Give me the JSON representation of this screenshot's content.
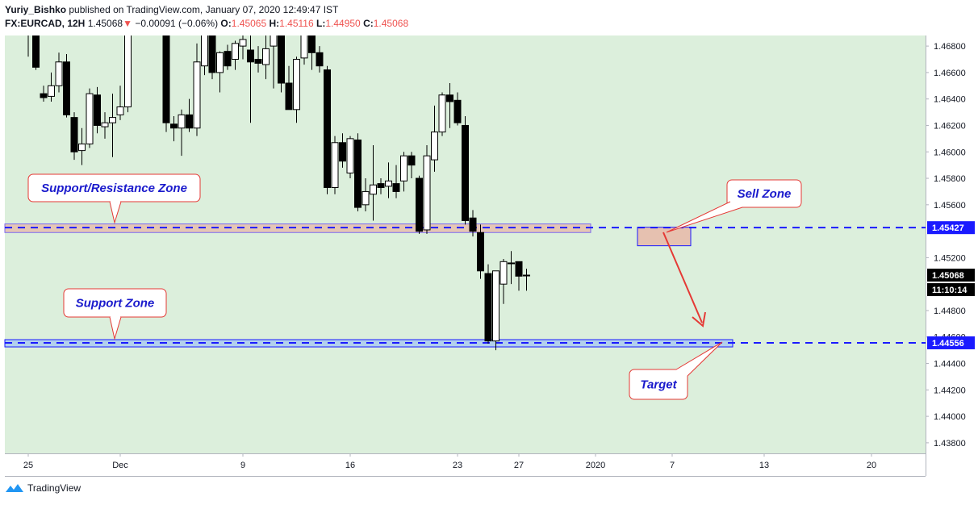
{
  "header": {
    "author": "Yuriy_Bishko",
    "published": "published on TradingView.com, January 07, 2020 12:49:47 IST",
    "symbol": "FX:EURCAD, 12H",
    "last": "1.45068",
    "arrow": "▼",
    "change": "−0.00091 (−0.06%)",
    "o_label": "O:",
    "o_value": "1.45065",
    "h_label": "H:",
    "h_value": "1.45116",
    "l_label": "L:",
    "l_value": "1.44950",
    "c_label": "C:",
    "c_value": "1.45068"
  },
  "footer": {
    "brand": "TradingView"
  },
  "colors": {
    "background": "#dcefdc",
    "up_body": "#ffffff",
    "down_body": "#000000",
    "dashed_line": "#1a1aff",
    "resistance_zone": "#e8b8a8",
    "support_zone": "#a8c8f0",
    "sell_zone": "#e8b8a8",
    "callout_text": "#1a1acc",
    "callout_border": "#e53935",
    "arrow": "#e53935"
  },
  "chart_data": {
    "type": "candlestick",
    "ylim": [
      1.4372,
      1.4688
    ],
    "y_ticks": [
      1.468,
      1.466,
      1.464,
      1.462,
      1.46,
      1.458,
      1.456,
      1.452,
      1.448,
      1.446,
      1.444,
      1.442,
      1.44,
      1.438
    ],
    "y_tick_labels": [
      "1.46800",
      "1.46600",
      "1.46400",
      "1.46200",
      "1.46000",
      "1.45800",
      "1.45600",
      "1.45200",
      "1.44800",
      "1.44600",
      "1.44400",
      "1.44200",
      "1.44000",
      "1.43800"
    ],
    "x_tick_labels": [
      {
        "label": "25",
        "day": 0
      },
      {
        "label": "Dec",
        "day": 6
      },
      {
        "label": "9",
        "day": 14
      },
      {
        "label": "16",
        "day": 21
      },
      {
        "label": "23",
        "day": 28
      },
      {
        "label": "27",
        "day": 32
      },
      {
        "label": "2020",
        "day": 37
      },
      {
        "label": "7",
        "day": 42
      },
      {
        "label": "13",
        "day": 48
      },
      {
        "label": "20",
        "day": 55
      }
    ],
    "candles": [
      {
        "d": 0.0,
        "o": 1.4695,
        "h": 1.4698,
        "l": 1.4672,
        "c": 1.4691
      },
      {
        "d": 0.5,
        "o": 1.469,
        "h": 1.4694,
        "l": 1.4662,
        "c": 1.4664
      },
      {
        "d": 1.0,
        "o": 1.4644,
        "h": 1.465,
        "l": 1.4638,
        "c": 1.4641
      },
      {
        "d": 1.5,
        "o": 1.4642,
        "h": 1.466,
        "l": 1.4638,
        "c": 1.465
      },
      {
        "d": 2.0,
        "o": 1.465,
        "h": 1.4675,
        "l": 1.4645,
        "c": 1.4668
      },
      {
        "d": 2.5,
        "o": 1.4668,
        "h": 1.4674,
        "l": 1.4626,
        "c": 1.4628
      },
      {
        "d": 3.0,
        "o": 1.4626,
        "h": 1.463,
        "l": 1.4594,
        "c": 1.46
      },
      {
        "d": 3.5,
        "o": 1.4601,
        "h": 1.4618,
        "l": 1.459,
        "c": 1.4606
      },
      {
        "d": 4.0,
        "o": 1.4606,
        "h": 1.4648,
        "l": 1.4603,
        "c": 1.4644
      },
      {
        "d": 4.5,
        "o": 1.4643,
        "h": 1.4649,
        "l": 1.4614,
        "c": 1.462
      },
      {
        "d": 5.0,
        "o": 1.4619,
        "h": 1.463,
        "l": 1.461,
        "c": 1.4622
      },
      {
        "d": 5.5,
        "o": 1.4622,
        "h": 1.4644,
        "l": 1.4596,
        "c": 1.4626
      },
      {
        "d": 6.0,
        "o": 1.4628,
        "h": 1.465,
        "l": 1.4624,
        "c": 1.4634
      },
      {
        "d": 6.5,
        "o": 1.4634,
        "h": 1.471,
        "l": 1.463,
        "c": 1.47
      },
      {
        "d": 9.0,
        "o": 1.47,
        "h": 1.471,
        "l": 1.4615,
        "c": 1.4622
      },
      {
        "d": 9.5,
        "o": 1.4621,
        "h": 1.4627,
        "l": 1.4608,
        "c": 1.4618
      },
      {
        "d": 10.0,
        "o": 1.4618,
        "h": 1.4632,
        "l": 1.4597,
        "c": 1.4628
      },
      {
        "d": 10.5,
        "o": 1.4628,
        "h": 1.464,
        "l": 1.4615,
        "c": 1.4618
      },
      {
        "d": 11.0,
        "o": 1.4618,
        "h": 1.4682,
        "l": 1.4612,
        "c": 1.4668
      },
      {
        "d": 11.5,
        "o": 1.4665,
        "h": 1.4695,
        "l": 1.4658,
        "c": 1.4692
      },
      {
        "d": 12.0,
        "o": 1.4695,
        "h": 1.47,
        "l": 1.4655,
        "c": 1.466
      },
      {
        "d": 12.5,
        "o": 1.466,
        "h": 1.4676,
        "l": 1.4645,
        "c": 1.4675
      },
      {
        "d": 13.0,
        "o": 1.4676,
        "h": 1.4681,
        "l": 1.4662,
        "c": 1.4665
      },
      {
        "d": 13.5,
        "o": 1.467,
        "h": 1.4684,
        "l": 1.4662,
        "c": 1.4682
      },
      {
        "d": 14.0,
        "o": 1.468,
        "h": 1.469,
        "l": 1.467,
        "c": 1.4685
      },
      {
        "d": 14.5,
        "o": 1.4677,
        "h": 1.4688,
        "l": 1.4622,
        "c": 1.4668
      },
      {
        "d": 15.0,
        "o": 1.467,
        "h": 1.468,
        "l": 1.466,
        "c": 1.4667
      },
      {
        "d": 15.5,
        "o": 1.4666,
        "h": 1.469,
        "l": 1.4655,
        "c": 1.4678
      },
      {
        "d": 16.0,
        "o": 1.468,
        "h": 1.47,
        "l": 1.4648,
        "c": 1.4695
      },
      {
        "d": 16.5,
        "o": 1.4695,
        "h": 1.47,
        "l": 1.4645,
        "c": 1.4652
      },
      {
        "d": 17.0,
        "o": 1.4652,
        "h": 1.4665,
        "l": 1.4632,
        "c": 1.4632
      },
      {
        "d": 17.5,
        "o": 1.4632,
        "h": 1.4672,
        "l": 1.4622,
        "c": 1.467
      },
      {
        "d": 18.0,
        "o": 1.4671,
        "h": 1.47,
        "l": 1.4666,
        "c": 1.4698
      },
      {
        "d": 18.5,
        "o": 1.4695,
        "h": 1.47,
        "l": 1.4662,
        "c": 1.4675
      },
      {
        "d": 19.0,
        "o": 1.4675,
        "h": 1.468,
        "l": 1.466,
        "c": 1.4665
      },
      {
        "d": 19.5,
        "o": 1.4662,
        "h": 1.4665,
        "l": 1.4568,
        "c": 1.4573
      },
      {
        "d": 20.0,
        "o": 1.4573,
        "h": 1.4612,
        "l": 1.4568,
        "c": 1.4607
      },
      {
        "d": 20.5,
        "o": 1.4607,
        "h": 1.4614,
        "l": 1.4588,
        "c": 1.4593
      },
      {
        "d": 21.0,
        "o": 1.4584,
        "h": 1.4612,
        "l": 1.458,
        "c": 1.461
      },
      {
        "d": 21.5,
        "o": 1.4609,
        "h": 1.4614,
        "l": 1.4555,
        "c": 1.4558
      },
      {
        "d": 22.0,
        "o": 1.456,
        "h": 1.458,
        "l": 1.4555,
        "c": 1.457
      },
      {
        "d": 22.5,
        "o": 1.4568,
        "h": 1.4605,
        "l": 1.4548,
        "c": 1.4575
      },
      {
        "d": 23.0,
        "o": 1.4576,
        "h": 1.458,
        "l": 1.4568,
        "c": 1.4573
      },
      {
        "d": 23.5,
        "o": 1.4574,
        "h": 1.4592,
        "l": 1.4565,
        "c": 1.4578
      },
      {
        "d": 24.0,
        "o": 1.4576,
        "h": 1.459,
        "l": 1.4565,
        "c": 1.457
      },
      {
        "d": 24.5,
        "o": 1.4578,
        "h": 1.46,
        "l": 1.457,
        "c": 1.4597
      },
      {
        "d": 25.0,
        "o": 1.4597,
        "h": 1.46,
        "l": 1.458,
        "c": 1.459
      },
      {
        "d": 25.5,
        "o": 1.458,
        "h": 1.4582,
        "l": 1.4538,
        "c": 1.454
      },
      {
        "d": 26.0,
        "o": 1.4541,
        "h": 1.4605,
        "l": 1.4538,
        "c": 1.4597
      },
      {
        "d": 26.5,
        "o": 1.4594,
        "h": 1.4635,
        "l": 1.4585,
        "c": 1.4615
      },
      {
        "d": 27.0,
        "o": 1.4615,
        "h": 1.4645,
        "l": 1.4612,
        "c": 1.4643
      },
      {
        "d": 27.5,
        "o": 1.4643,
        "h": 1.4652,
        "l": 1.4618,
        "c": 1.4638
      },
      {
        "d": 28.0,
        "o": 1.4639,
        "h": 1.4645,
        "l": 1.462,
        "c": 1.4622
      },
      {
        "d": 28.5,
        "o": 1.462,
        "h": 1.4627,
        "l": 1.4545,
        "c": 1.4548
      },
      {
        "d": 29.0,
        "o": 1.455,
        "h": 1.4556,
        "l": 1.4536,
        "c": 1.454
      },
      {
        "d": 29.5,
        "o": 1.4539,
        "h": 1.4545,
        "l": 1.4504,
        "c": 1.451
      },
      {
        "d": 30.0,
        "o": 1.4508,
        "h": 1.4515,
        "l": 1.4455,
        "c": 1.4457
      },
      {
        "d": 30.5,
        "o": 1.4457,
        "h": 1.451,
        "l": 1.445,
        "c": 1.451
      },
      {
        "d": 31.0,
        "o": 1.45,
        "h": 1.4519,
        "l": 1.4485,
        "c": 1.4517
      },
      {
        "d": 31.5,
        "o": 1.4516,
        "h": 1.4525,
        "l": 1.45,
        "c": 1.4516
      },
      {
        "d": 32.0,
        "o": 1.4517,
        "h": 1.4517,
        "l": 1.4495,
        "c": 1.4506
      },
      {
        "d": 32.5,
        "o": 1.45065,
        "h": 1.45116,
        "l": 1.4495,
        "c": 1.45068
      }
    ]
  },
  "annotations": {
    "resistance_level": 1.45427,
    "resistance_label": "1.45427",
    "support_level": 1.44556,
    "support_label": "1.44556",
    "current_label": "1.45068",
    "countdown": "11:10:14",
    "support_resistance_zone": "Support/Resistance Zone",
    "support_zone": "Support Zone",
    "sell_zone": "Sell Zone",
    "target": "Target"
  }
}
